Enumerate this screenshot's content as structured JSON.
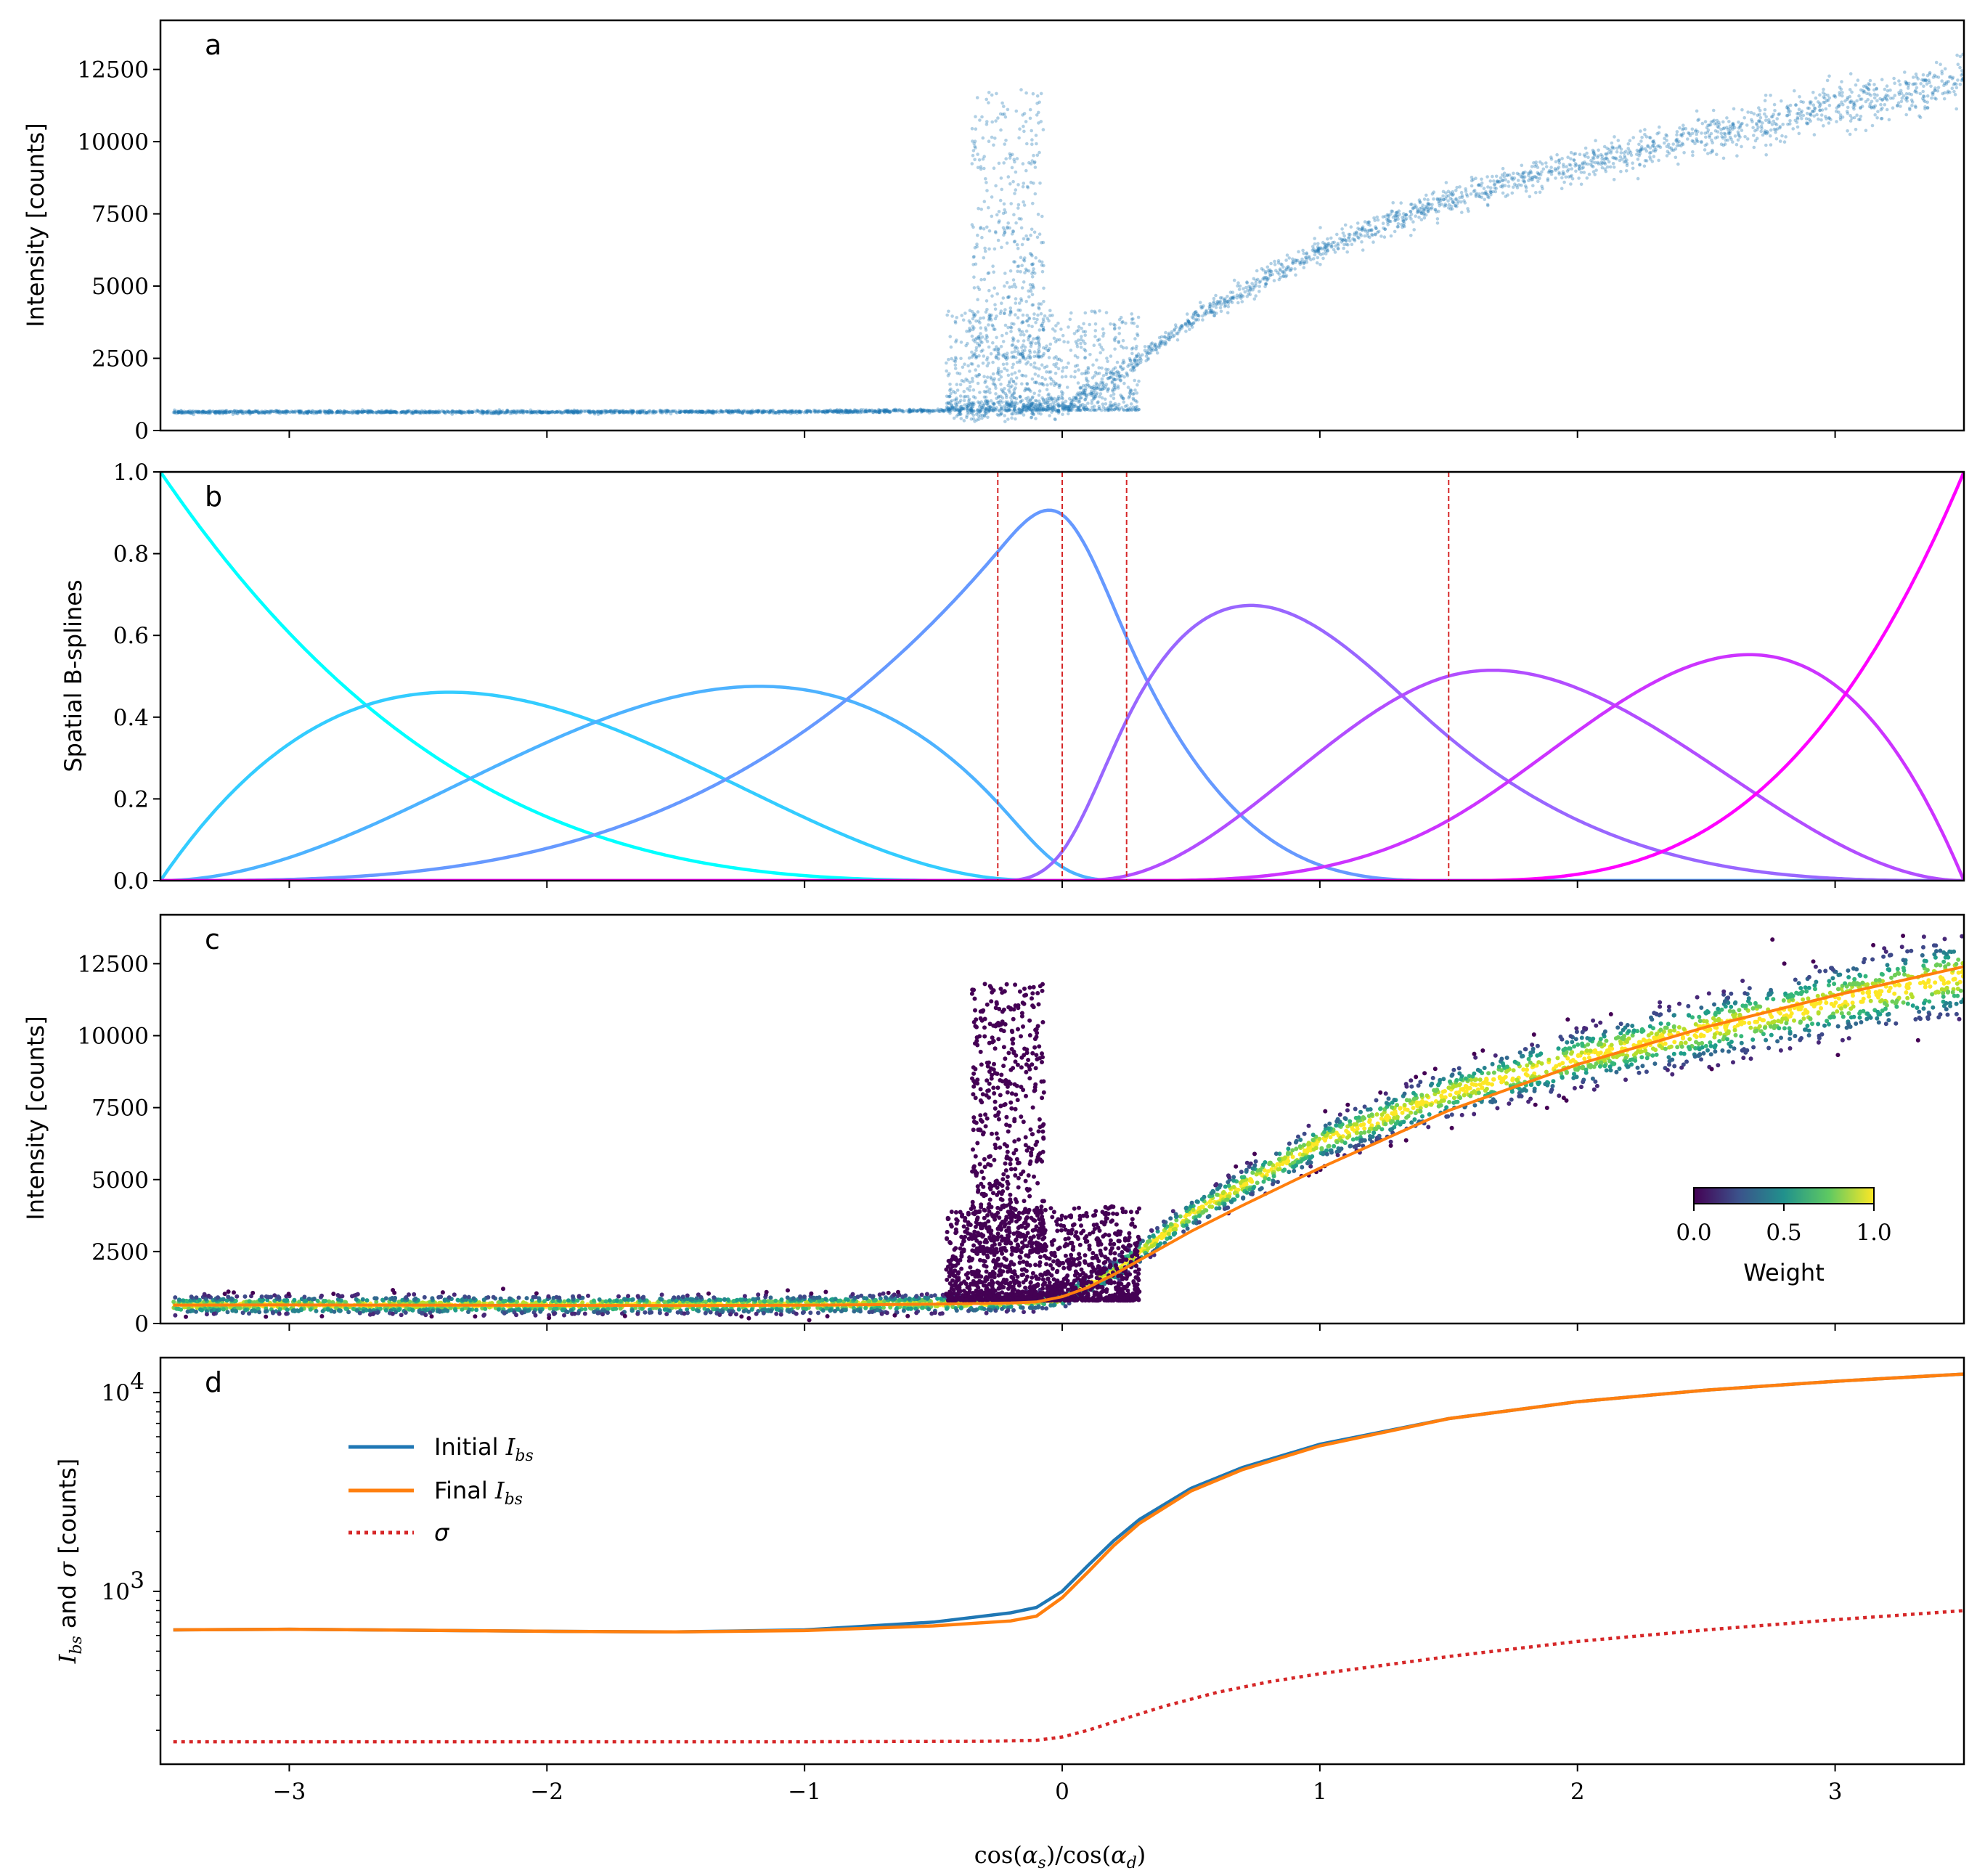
{
  "figure": {
    "xlabel": "cos(α_s) / cos(α_d)",
    "xlim": [
      -3.5,
      3.5
    ],
    "xticks": [
      -3,
      -2,
      -1,
      0,
      1,
      2,
      3
    ],
    "xtick_labels": [
      "−3",
      "−2",
      "−1",
      "0",
      "1",
      "2",
      "3"
    ]
  },
  "chart_data": [
    {
      "panel": "a",
      "type": "scatter",
      "ylabel": "Intensity [counts]",
      "ylim": [
        0,
        14200
      ],
      "yticks": [
        0,
        2500,
        5000,
        7500,
        10000,
        12500
      ],
      "ytick_labels": [
        "0",
        "2500",
        "5000",
        "7500",
        "10000",
        "12500"
      ],
      "color": "#1f77b4",
      "series": [
        {
          "baseline_trend": {
            "x": [
              -3.45,
              -2.0,
              -1.0,
              -0.3,
              0.0,
              0.2,
              0.5,
              1.0,
              1.5,
              2.0,
              2.5,
              3.0,
              3.5
            ],
            "y": [
              640,
              640,
              650,
              700,
              850,
              1800,
              3800,
              6300,
              8000,
              9200,
              10200,
              11200,
              12100
            ]
          },
          "spike_region": {
            "x_range": [
              -0.45,
              -0.05
            ],
            "y_max": 11800
          }
        }
      ]
    },
    {
      "panel": "b",
      "type": "line",
      "ylabel": "Spatial B-splines",
      "ylim": [
        0,
        1
      ],
      "yticks": [
        0,
        0.2,
        0.4,
        0.6,
        0.8,
        1.0
      ],
      "ytick_labels": [
        "0.0",
        "0.2",
        "0.4",
        "0.6",
        "0.8",
        "1.0"
      ],
      "knots": [
        -3.5,
        -0.25,
        0,
        0.25,
        1.5,
        3.5
      ],
      "knot_lines": [
        -0.25,
        0,
        0.25,
        1.5
      ],
      "knot_line_color": "#d62728",
      "basis_colors": [
        "#00ffff",
        "#33ccff",
        "#4db2ff",
        "#6699ff",
        "#9966ff",
        "#b24dff",
        "#cc33ff",
        "#ff00ff"
      ]
    },
    {
      "panel": "c",
      "type": "scatter",
      "ylabel": "Intensity [counts]",
      "ylim": [
        0,
        14200
      ],
      "yticks": [
        0,
        2500,
        5000,
        7500,
        10000,
        12500
      ],
      "ytick_labels": [
        "0",
        "2500",
        "5000",
        "7500",
        "10000",
        "12500"
      ],
      "fit_color": "#ff7f0e",
      "colorbar": {
        "label": "Weight",
        "ticks": [
          "0.0",
          "0.5",
          "1.0"
        ],
        "colors": [
          "#440154",
          "#3b528b",
          "#21918c",
          "#5ec962",
          "#fde725"
        ]
      }
    },
    {
      "panel": "d",
      "type": "line",
      "ylabel": "I_bs and σ [counts]",
      "yscale": "log",
      "ylim": [
        135,
        15000
      ],
      "ytick_labels": [
        "10^3",
        "10^4"
      ],
      "legend_position": "upper-left",
      "series": [
        {
          "name": "Initial I_bs",
          "color": "#1f77b4",
          "x": [
            -3.45,
            -3.0,
            -2.0,
            -1.5,
            -1.0,
            -0.5,
            -0.2,
            -0.1,
            0.0,
            0.1,
            0.2,
            0.3,
            0.5,
            0.7,
            1.0,
            1.5,
            2.0,
            2.5,
            3.0,
            3.5
          ],
          "y": [
            640,
            645,
            630,
            625,
            640,
            700,
            780,
            830,
            1000,
            1350,
            1800,
            2300,
            3300,
            4200,
            5500,
            7400,
            9000,
            10300,
            11400,
            12400
          ]
        },
        {
          "name": "Final I_bs",
          "color": "#ff7f0e",
          "x": [
            -3.45,
            -3.0,
            -2.0,
            -1.5,
            -1.0,
            -0.5,
            -0.2,
            -0.1,
            0.0,
            0.1,
            0.2,
            0.3,
            0.5,
            0.7,
            1.0,
            1.5,
            2.0,
            2.5,
            3.0,
            3.5
          ],
          "y": [
            640,
            645,
            630,
            625,
            635,
            670,
            710,
            750,
            930,
            1250,
            1700,
            2200,
            3200,
            4100,
            5400,
            7400,
            9000,
            10300,
            11400,
            12400
          ]
        },
        {
          "name": "σ",
          "color": "#d62728",
          "dashed": true,
          "x": [
            -3.45,
            -2.0,
            -1.0,
            -0.3,
            -0.1,
            0.0,
            0.1,
            0.2,
            0.4,
            0.6,
            0.8,
            1.0,
            1.5,
            2.0,
            2.5,
            3.0,
            3.5
          ],
          "y": [
            175,
            175,
            175,
            176,
            178,
            185,
            200,
            220,
            265,
            310,
            350,
            385,
            470,
            560,
            640,
            720,
            800
          ]
        }
      ]
    }
  ]
}
